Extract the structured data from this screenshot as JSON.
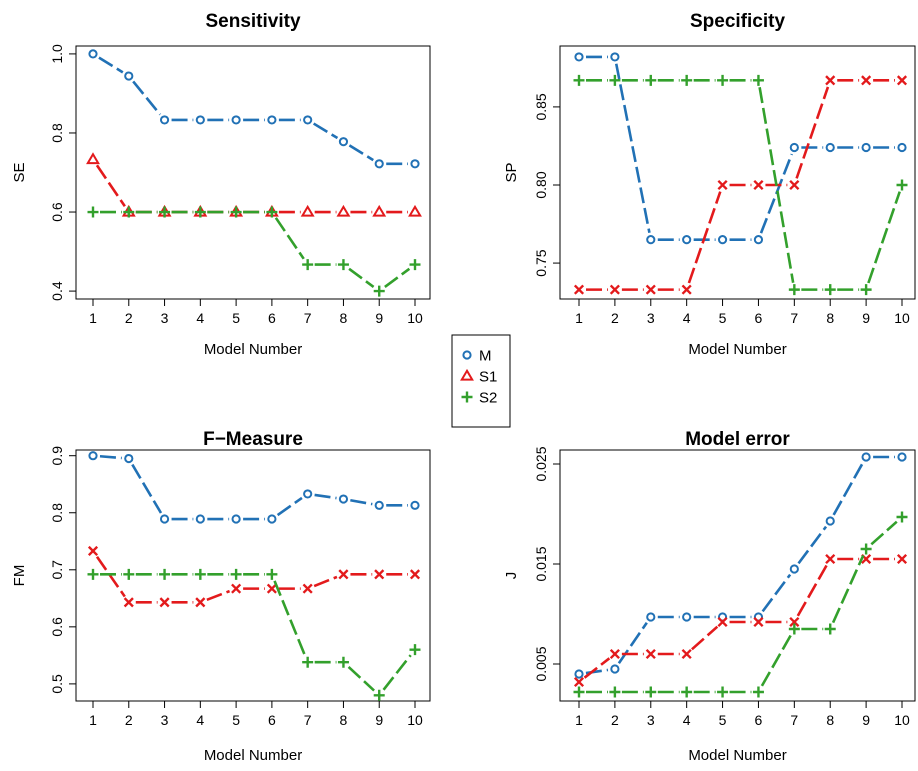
{
  "colors": {
    "M": "#2171b5",
    "S1": "#e31a1c",
    "S2": "#33a02c"
  },
  "legend": {
    "placement": "center",
    "entries": [
      {
        "key": "M",
        "label": "M",
        "marker": "circle"
      },
      {
        "key": "S1",
        "label": "S1",
        "marker": "triangle"
      },
      {
        "key": "S2",
        "label": "S2",
        "marker": "plus"
      }
    ]
  },
  "chart_data": [
    {
      "type": "line",
      "title": "Sensitivity",
      "xlabel": "Model Number",
      "ylabel": "SE",
      "x": [
        1,
        2,
        3,
        4,
        5,
        6,
        7,
        8,
        9,
        10
      ],
      "xlim": [
        1,
        10
      ],
      "ylim": [
        0.38,
        1.02
      ],
      "yticks": [
        "0.4",
        "0.6",
        "0.8",
        "1.0"
      ],
      "grid": false,
      "series": [
        {
          "key": "M",
          "name": "M",
          "marker": "circle",
          "values": [
            1.0,
            0.944,
            0.833,
            0.833,
            0.833,
            0.833,
            0.833,
            0.778,
            0.722,
            0.722
          ]
        },
        {
          "key": "S1",
          "name": "S1",
          "marker": "triangle",
          "values": [
            0.733,
            0.6,
            0.6,
            0.6,
            0.6,
            0.6,
            0.6,
            0.6,
            0.6,
            0.6
          ]
        },
        {
          "key": "S2",
          "name": "S2",
          "marker": "plus",
          "values": [
            0.6,
            0.6,
            0.6,
            0.6,
            0.6,
            0.6,
            0.467,
            0.467,
            0.4,
            0.467
          ]
        }
      ]
    },
    {
      "type": "line",
      "title": "Specificity",
      "xlabel": "Model Number",
      "ylabel": "SP",
      "x": [
        1,
        2,
        3,
        4,
        5,
        6,
        7,
        8,
        9,
        10
      ],
      "xlim": [
        1,
        10
      ],
      "ylim": [
        0.727,
        0.889
      ],
      "yticks": [
        "0.75",
        "0.80",
        "0.85"
      ],
      "grid": false,
      "series": [
        {
          "key": "M",
          "name": "M",
          "marker": "circle",
          "values": [
            0.882,
            0.882,
            0.765,
            0.765,
            0.765,
            0.765,
            0.824,
            0.824,
            0.824,
            0.824
          ]
        },
        {
          "key": "S1",
          "name": "S1",
          "marker": "cross",
          "values": [
            0.733,
            0.733,
            0.733,
            0.733,
            0.8,
            0.8,
            0.8,
            0.867,
            0.867,
            0.867
          ]
        },
        {
          "key": "S2",
          "name": "S2",
          "marker": "plus",
          "values": [
            0.867,
            0.867,
            0.867,
            0.867,
            0.867,
            0.867,
            0.733,
            0.733,
            0.733,
            0.8
          ]
        }
      ]
    },
    {
      "type": "line",
      "title": "F−Measure",
      "xlabel": "Model Number",
      "ylabel": "FM",
      "x": [
        1,
        2,
        3,
        4,
        5,
        6,
        7,
        8,
        9,
        10
      ],
      "xlim": [
        1,
        10
      ],
      "ylim": [
        0.47,
        0.91
      ],
      "yticks": [
        "0.5",
        "0.6",
        "0.7",
        "0.8",
        "0.9"
      ],
      "grid": false,
      "series": [
        {
          "key": "M",
          "name": "M",
          "marker": "circle",
          "values": [
            0.9,
            0.895,
            0.789,
            0.789,
            0.789,
            0.789,
            0.833,
            0.824,
            0.813,
            0.813
          ]
        },
        {
          "key": "S1",
          "name": "S1",
          "marker": "cross",
          "values": [
            0.733,
            0.643,
            0.643,
            0.643,
            0.667,
            0.667,
            0.667,
            0.692,
            0.692,
            0.692
          ]
        },
        {
          "key": "S2",
          "name": "S2",
          "marker": "plus",
          "values": [
            0.692,
            0.692,
            0.692,
            0.692,
            0.692,
            0.692,
            0.538,
            0.538,
            0.48,
            0.56
          ]
        }
      ]
    },
    {
      "type": "line",
      "title": "Model error",
      "xlabel": "Model Number",
      "ylabel": "J",
      "x": [
        1,
        2,
        3,
        4,
        5,
        6,
        7,
        8,
        9,
        10
      ],
      "xlim": [
        1,
        10
      ],
      "ylim": [
        0.0013,
        0.0264
      ],
      "yticks": [
        "0.005",
        "0.015",
        "0.025"
      ],
      "grid": false,
      "series": [
        {
          "key": "M",
          "name": "M",
          "marker": "circle",
          "values": [
            0.004,
            0.0045,
            0.0097,
            0.0097,
            0.0097,
            0.0097,
            0.0145,
            0.0193,
            0.0257,
            0.0257
          ]
        },
        {
          "key": "S1",
          "name": "S1",
          "marker": "cross",
          "values": [
            0.0032,
            0.006,
            0.006,
            0.006,
            0.0092,
            0.0092,
            0.0092,
            0.0155,
            0.0155,
            0.0155
          ]
        },
        {
          "key": "S2",
          "name": "S2",
          "marker": "plus",
          "values": [
            0.0022,
            0.0022,
            0.0022,
            0.0022,
            0.0022,
            0.0022,
            0.0085,
            0.0085,
            0.0165,
            0.0197
          ]
        }
      ]
    }
  ]
}
